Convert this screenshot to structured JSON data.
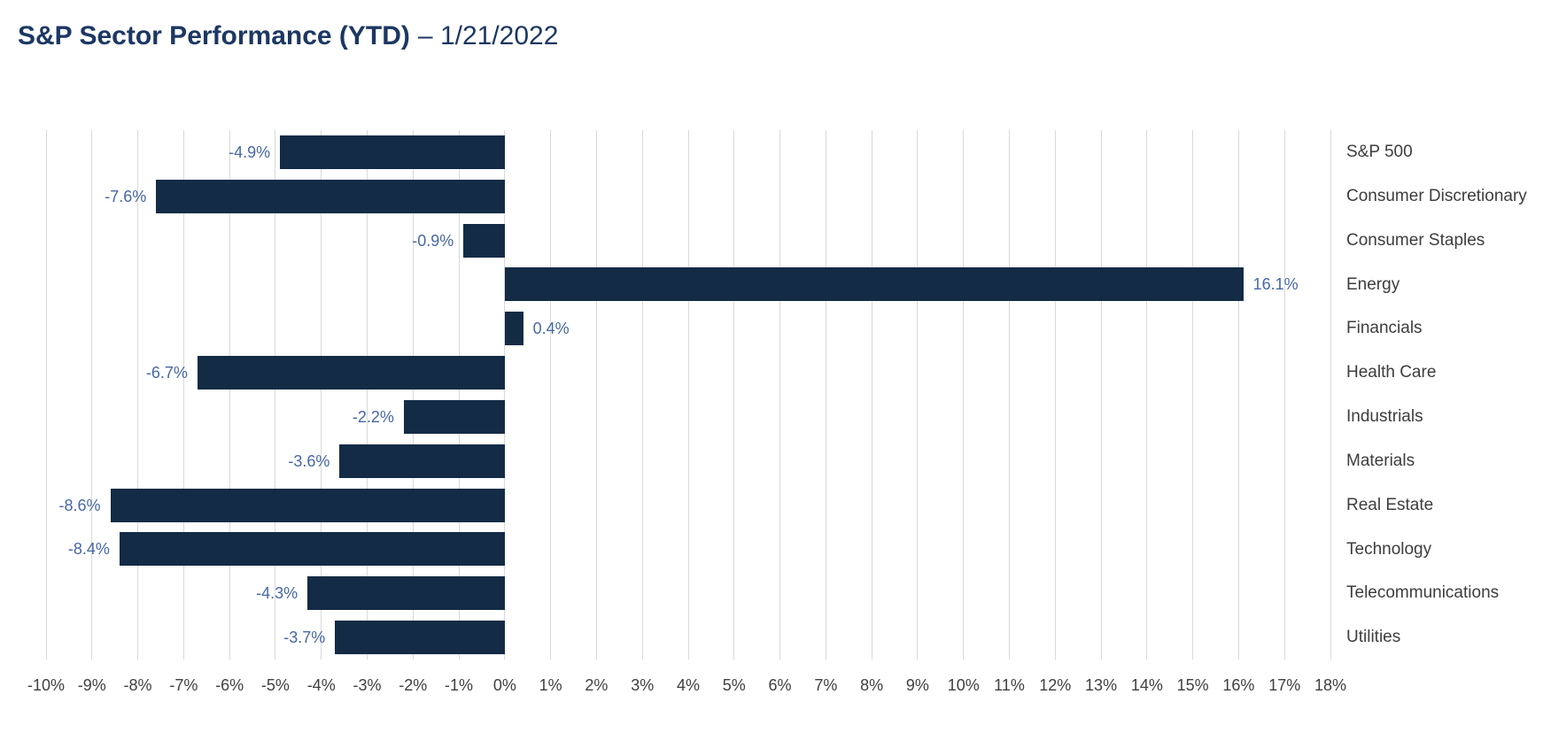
{
  "header": {
    "title_main": "S&P Sector Performance (YTD)",
    "title_suffix": "– 1/21/2022",
    "title_color": "#1c3763"
  },
  "chart_data": {
    "type": "bar",
    "orientation": "horizontal",
    "title": "S&P Sector Performance (YTD) – 1/21/2022",
    "categories": [
      "S&P 500",
      "Consumer Discretionary",
      "Consumer Staples",
      "Energy",
      "Financials",
      "Health Care",
      "Industrials",
      "Materials",
      "Real Estate",
      "Technology",
      "Telecommunications",
      "Utilities"
    ],
    "values": [
      -4.9,
      -7.6,
      -0.9,
      16.1,
      0.4,
      -6.7,
      -2.2,
      -3.6,
      -8.6,
      -8.4,
      -4.3,
      -3.7
    ],
    "value_labels": [
      "-4.9%",
      "-7.6%",
      "-0.9%",
      "16.1%",
      "0.4%",
      "-6.7%",
      "-2.2%",
      "-3.6%",
      "-8.6%",
      "-8.4%",
      "-4.3%",
      "-3.7%"
    ],
    "xlabel": "",
    "ylabel": "",
    "xlim": [
      -10,
      18
    ],
    "x_tick_step": 1,
    "x_tick_labels": [
      "-10%",
      "-9%",
      "-8%",
      "-7%",
      "-6%",
      "-5%",
      "-4%",
      "-3%",
      "-2%",
      "-1%",
      "0%",
      "1%",
      "2%",
      "3%",
      "4%",
      "5%",
      "6%",
      "7%",
      "8%",
      "9%",
      "10%",
      "11%",
      "12%",
      "13%",
      "14%",
      "15%",
      "16%",
      "17%",
      "18%"
    ],
    "grid": true,
    "legend": "none",
    "bar_color": "#132b45",
    "value_label_color": "#4767a7",
    "category_label_color": "#3d3d3d",
    "tick_label_color": "#404040",
    "gridline_color": "#d9d9d9"
  }
}
